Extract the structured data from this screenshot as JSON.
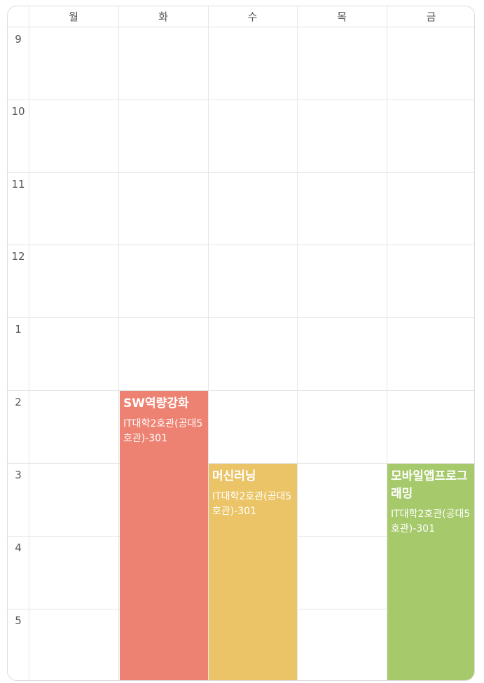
{
  "days": [
    "월",
    "화",
    "수",
    "목",
    "금"
  ],
  "hours": [
    "9",
    "10",
    "11",
    "12",
    "1",
    "2",
    "3",
    "4",
    "5"
  ],
  "events": [
    {
      "title": "SW역량강화",
      "room": "IT대학2호관(공대5호관)-301",
      "day": "화",
      "color": "#ee8272"
    },
    {
      "title": "머신러닝",
      "room": "IT대학2호관(공대5호관)-301",
      "day": "수",
      "color": "#ebc467"
    },
    {
      "title": "모바일앱프로그래밍",
      "room": "IT대학2호관(공대5호관)-301",
      "day": "금",
      "color": "#a6c96b"
    }
  ],
  "colors": {
    "grid": "#e6e6e6",
    "text": "#555555",
    "background": "#ffffff"
  }
}
